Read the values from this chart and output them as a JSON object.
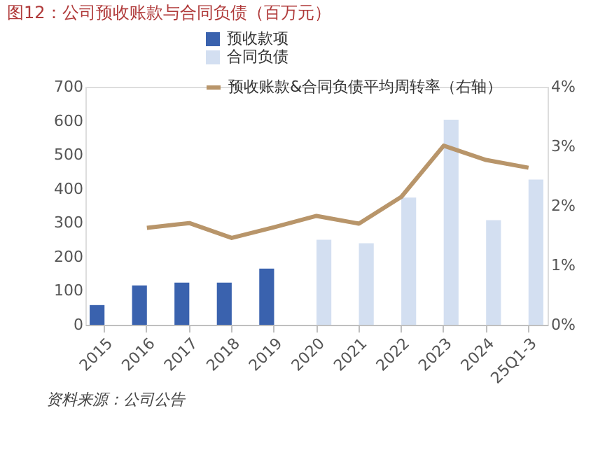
{
  "chart_data": {
    "type": "bar",
    "title": "图12：公司预收账款与合同负债（百万元）",
    "categories": [
      "2015",
      "2016",
      "2017",
      "2018",
      "2019",
      "2020",
      "2021",
      "2022",
      "2023",
      "2024",
      "25Q1-3"
    ],
    "series": [
      {
        "name": "预收款项",
        "color": "#3a62ae",
        "values": [
          58,
          116,
          124,
          124,
          165,
          null,
          null,
          null,
          null,
          null,
          null
        ]
      },
      {
        "name": "合同负债",
        "color": "#d3dff1",
        "values": [
          null,
          null,
          null,
          null,
          null,
          250,
          240,
          374,
          603,
          308,
          427
        ]
      },
      {
        "name": "预收账款&合同负债平均周转率（右轴）",
        "type": "line",
        "axis": "y2",
        "color": "#b8956a",
        "values": [
          null,
          1.63,
          1.71,
          1.46,
          1.64,
          1.83,
          1.7,
          2.15,
          3.01,
          2.77,
          2.64
        ]
      }
    ],
    "ylim": [
      0,
      700
    ],
    "yticks": [
      0,
      100,
      200,
      300,
      400,
      500,
      600,
      700
    ],
    "y2lim": [
      0,
      4
    ],
    "y2ticks": [
      {
        "value": 0,
        "label": "0%"
      },
      {
        "value": 1,
        "label": "1%"
      },
      {
        "value": 2,
        "label": "2%"
      },
      {
        "value": 3,
        "label": "3%"
      },
      {
        "value": 4,
        "label": "4%"
      }
    ],
    "grid": false,
    "legend": "top",
    "marker": "none",
    "line_style": "solid",
    "annotations": [
      "资料来源：公司公告"
    ]
  }
}
